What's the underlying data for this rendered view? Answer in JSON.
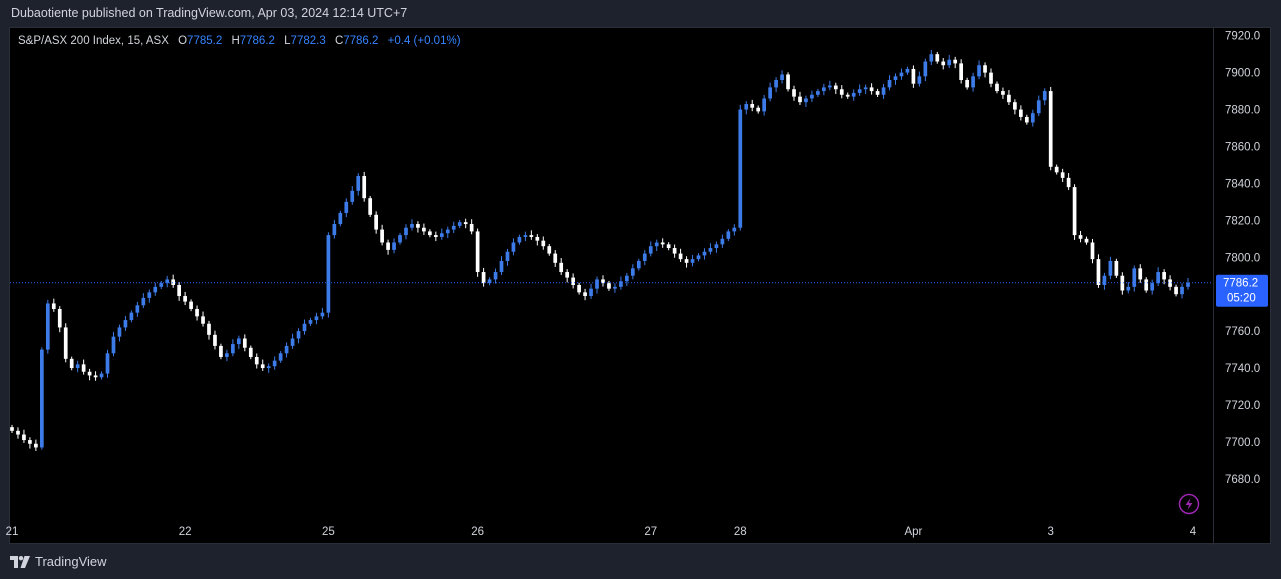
{
  "header": {
    "published": "Dubaotiente published on TradingView.com, Apr 03, 2024 12:14 UTC+7"
  },
  "legend": {
    "symbol": "S&P/ASX 200 Index, 15, ASX",
    "o_label": "O",
    "o_value": "7785.2",
    "h_label": "H",
    "h_value": "7786.2",
    "l_label": "L",
    "l_value": "7782.3",
    "c_label": "C",
    "c_value": "7786.2",
    "change": "+0.4 (+0.01%)"
  },
  "price_tag": {
    "price": "7786.2",
    "countdown": "05:20"
  },
  "footer": {
    "brand": "TradingView"
  },
  "colors": {
    "up": "#3d7be8",
    "down": "#ffffff",
    "accent": "#2962ff",
    "background": "#000000",
    "frame": "#1e222d",
    "flash": "#9c27b0"
  },
  "icons": {
    "flash": "lightning-bolt-icon",
    "logo": "tradingview-logo-icon"
  },
  "chart_data": {
    "type": "candlestick",
    "title": "S&P/ASX 200 Index, 15, ASX",
    "xlabel": "",
    "ylabel": "",
    "ylim": [
      7668,
      7922
    ],
    "y_ticks": [
      "7920.0",
      "7900.0",
      "7880.0",
      "7860.0",
      "7840.0",
      "7820.0",
      "7800.0",
      "7780.0",
      "7760.0",
      "7740.0",
      "7720.0",
      "7700.0",
      "7680.0"
    ],
    "x_ticks": [
      "21",
      "22",
      "25",
      "26",
      "27",
      "28",
      "Apr",
      "3",
      "4"
    ],
    "last_price": 7786.2,
    "grid": false,
    "legend_placement": "top-left",
    "days": [
      {
        "label": "21",
        "close": [
          7706,
          7704,
          7701,
          7699,
          7697,
          7750,
          7775,
          7772,
          7762,
          7745,
          7740,
          7742,
          7738,
          7736,
          7735,
          7737,
          7748,
          7757,
          7762,
          7766,
          7770,
          7774,
          7778,
          7781,
          7784,
          7786,
          7788,
          7785,
          7779
        ]
      },
      {
        "label": "22",
        "close": [
          7776,
          7772,
          7768,
          7764,
          7758,
          7752,
          7746,
          7748,
          7753,
          7756,
          7751,
          7746,
          7742,
          7740,
          7741,
          7744,
          7748,
          7752,
          7756,
          7760,
          7764,
          7766,
          7768,
          7770
        ]
      },
      {
        "label": "25",
        "close": [
          7812,
          7818,
          7824,
          7830,
          7836,
          7844,
          7832,
          7823,
          7815,
          7808,
          7804,
          7808,
          7812,
          7816,
          7818,
          7816,
          7814,
          7812,
          7811,
          7813,
          7815,
          7817,
          7819,
          7818,
          7814
        ]
      },
      {
        "label": "26",
        "close": [
          7792,
          7786,
          7788,
          7792,
          7798,
          7803,
          7808,
          7811,
          7812,
          7811,
          7809,
          7806,
          7802,
          7797,
          7792,
          7789,
          7785,
          7781,
          7779,
          7783,
          7788,
          7786,
          7783,
          7784,
          7787,
          7790,
          7794,
          7798,
          7802
        ]
      },
      {
        "label": "27",
        "close": [
          7806,
          7808,
          7807,
          7805,
          7802,
          7799,
          7797,
          7799,
          7801,
          7803,
          7805,
          7807,
          7810,
          7814,
          7816
        ]
      },
      {
        "label": "28",
        "close": [
          7880,
          7883,
          7881,
          7879,
          7886,
          7892,
          7896,
          7899,
          7891,
          7887,
          7884,
          7886,
          7888,
          7890,
          7892,
          7893,
          7891,
          7888,
          7887,
          7889,
          7891,
          7892,
          7890,
          7888,
          7892,
          7896,
          7898,
          7900,
          7902
        ]
      },
      {
        "label": "Apr",
        "close": [
          7894,
          7898,
          7906,
          7910,
          7906,
          7904,
          7907,
          7905,
          7896,
          7892,
          7898,
          7904,
          7900,
          7894,
          7890,
          7888,
          7884,
          7880,
          7876,
          7873,
          7878,
          7885,
          7890
        ]
      },
      {
        "label": "3",
        "close": [
          7849,
          7846,
          7843,
          7838,
          7812,
          7810,
          7808,
          7799,
          7785,
          7790,
          7798,
          7790,
          7782,
          7784,
          7794,
          7788,
          7782,
          7786,
          7792,
          7788,
          7784,
          7780,
          7784,
          7786.2
        ]
      }
    ]
  }
}
